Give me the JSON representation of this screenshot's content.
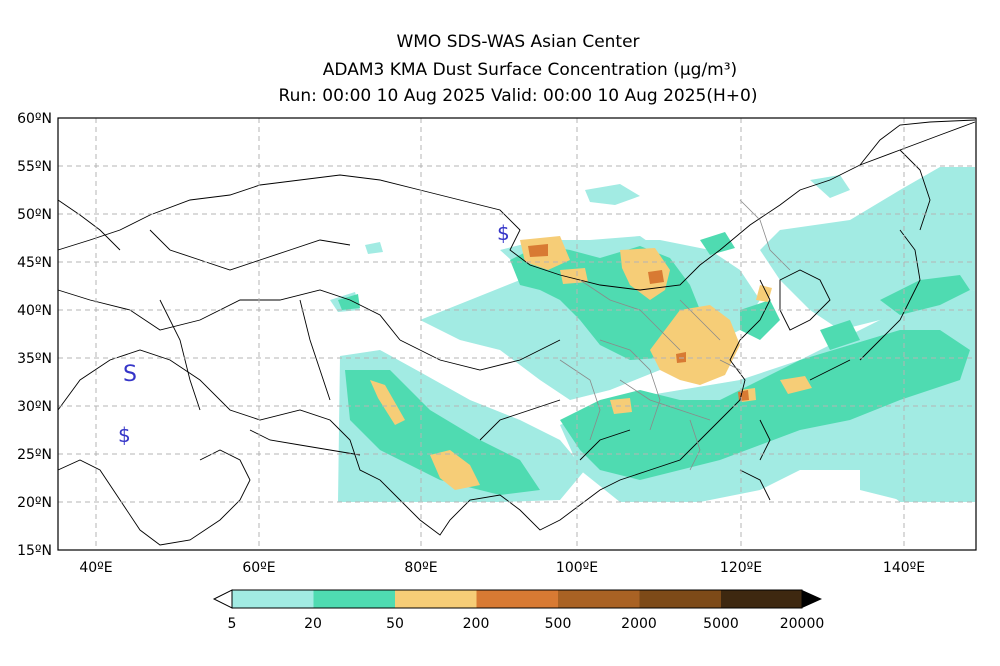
{
  "header": {
    "line1": "WMO SDS-WAS Asian Center",
    "line2": "ADAM3 KMA Dust Surface Concentration (μg/m³)",
    "line3": "Run: 00:00 10 Aug 2025    Valid: 00:00 10 Aug 2025(H+0)"
  },
  "map": {
    "lat_labels": [
      "60ºN",
      "55ºN",
      "50ºN",
      "45ºN",
      "40ºN",
      "35ºN",
      "30ºN",
      "25ºN",
      "20ºN",
      "15ºN"
    ],
    "lon_labels": [
      "40ºE",
      "60ºE",
      "80ºE",
      "100ºE",
      "120ºE",
      "140ºE"
    ],
    "markers": [
      "$",
      "S",
      "$"
    ]
  },
  "legend": {
    "ticks": [
      "5",
      "20",
      "50",
      "200",
      "500",
      "2000",
      "5000",
      "20000"
    ],
    "colors": [
      "#a2ebe3",
      "#4fdbb1",
      "#f6cd77",
      "#d87a33",
      "#a96224",
      "#7d4a18",
      "#3e2810"
    ]
  }
}
